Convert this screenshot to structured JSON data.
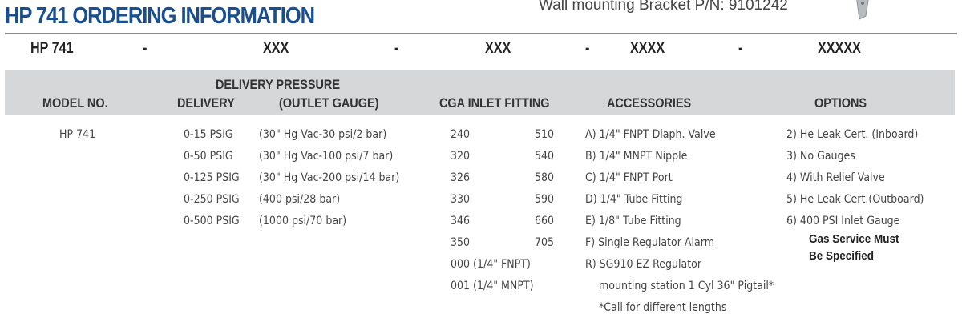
{
  "title": "HP 741 ORDERING INFORMATION",
  "bracket_text": "Wall mounting Bracket P/N: 9101242",
  "code_row": [
    "HP 741",
    "-",
    "XXX",
    "-",
    "XXX",
    "-",
    "XXXX",
    "-",
    "XXXXX"
  ],
  "headers": {
    "model": "MODEL NO.",
    "delivery_pressure": "DELIVERY PRESSURE",
    "delivery": "DELIVERY",
    "outlet_gauge": "(OUTLET GAUGE)",
    "cga": "CGA INLET FITTING",
    "accessories": "ACCESSORIES",
    "options": "OPTIONS"
  },
  "model": "HP 741",
  "delivery": [
    "0-15 PSIG",
    "0-50 PSIG",
    "0-125 PSIG",
    "0-250 PSIG",
    "0-500 PSIG"
  ],
  "gauge": [
    "(30\" Hg Vac-30 psi/2 bar)",
    "(30\" Hg Vac-100 psi/7 bar)",
    "(30\" Hg Vac-200 psi/14 bar)",
    "(400 psi/28 bar)",
    "(1000 psi/70 bar)"
  ],
  "cga_left": [
    "240",
    "320",
    "326",
    "330",
    "346",
    "350",
    "000 (1/4\" FNPT)",
    "001 (1/4\" MNPT)"
  ],
  "cga_right": [
    "510",
    "540",
    "580",
    "590",
    "660",
    "705"
  ],
  "accessories": [
    "A) 1/4\" FNPT Diaph. Valve",
    "B) 1/4\" MNPT Nipple",
    "C) 1/4\" FNPT Port",
    "D) 1/4\" Tube Fitting",
    "E) 1/8\" Tube Fitting",
    "F) Single Regulator Alarm",
    "R) SG910 EZ Regulator",
    "mounting station 1 Cyl 36\" Pigtail*",
    "*Call for different lengths"
  ],
  "options": [
    "2) He Leak Cert. (Inboard)",
    "3) No Gauges",
    "4) With Relief Valve",
    "5) He Leak Cert.(Outboard)",
    "6) 400 PSI Inlet Gauge"
  ],
  "options_note": [
    "Gas Service Must",
    "Be Specified"
  ],
  "colors": {
    "title": "#1a4f8f",
    "band": "#d6d7d9"
  }
}
